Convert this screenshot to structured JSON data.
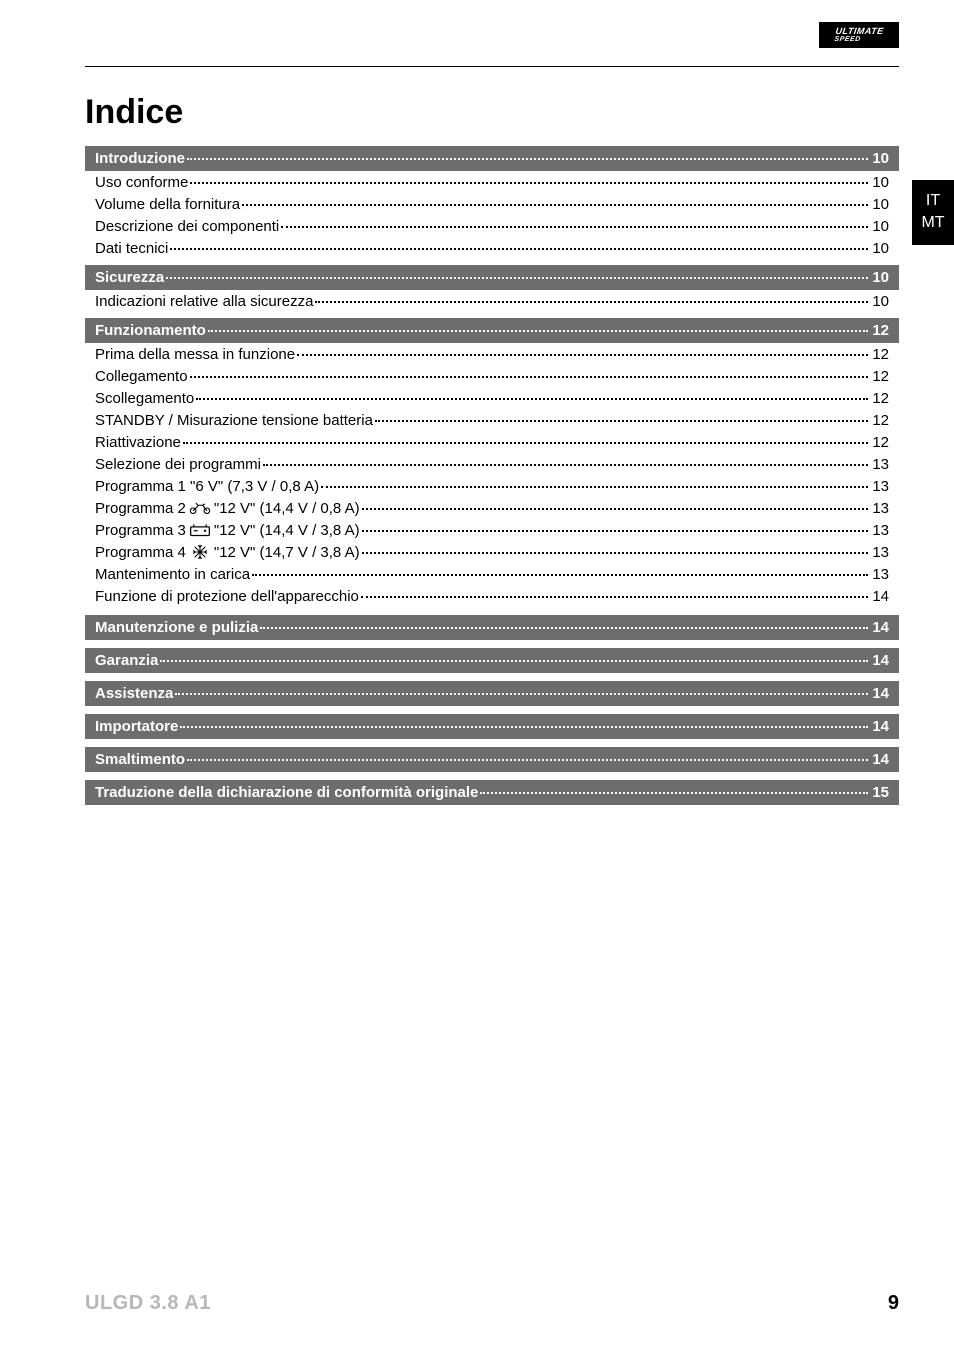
{
  "brand": {
    "top": "ULTIMATE",
    "bottom": "SPEED",
    "bg": "#000000",
    "fg": "#ffffff"
  },
  "rule_color": "#000000",
  "lang_tab": {
    "line1": "IT",
    "line2": "MT",
    "bg": "#000000",
    "fg": "#ffffff"
  },
  "title": "Indice",
  "section_bar": {
    "bg": "#6d6d6d",
    "fg": "#ffffff",
    "font_size": 15,
    "font_weight": 700
  },
  "row_style": {
    "font_size": 15,
    "color": "#000000",
    "leader": "dotted"
  },
  "sections": [
    {
      "label": "Introduzione",
      "page": "10",
      "items": [
        {
          "label": "Uso conforme",
          "page": "10"
        },
        {
          "label": "Volume della fornitura",
          "page": "10"
        },
        {
          "label": "Descrizione dei componenti",
          "page": "10"
        },
        {
          "label": "Dati tecnici",
          "page": "10"
        }
      ]
    },
    {
      "label": "Sicurezza",
      "page": "10",
      "items": [
        {
          "label": "Indicazioni relative alla sicurezza",
          "page": "10"
        }
      ]
    },
    {
      "label": "Funzionamento",
      "page": "12",
      "items": [
        {
          "label": "Prima della messa in funzione",
          "page": "12"
        },
        {
          "label": "Collegamento",
          "page": "12"
        },
        {
          "label": "Scollegamento",
          "page": "12"
        },
        {
          "label": "STANDBY / Misurazione tensione batteria",
          "page": "12"
        },
        {
          "label": "Riattivazione",
          "page": "12"
        },
        {
          "label": "Selezione dei programmi",
          "page": "13"
        },
        {
          "label": "Programma 1 \"6 V\" (7,3 V / 0,8 A)",
          "page": "13"
        },
        {
          "label_pre": "Programma 2 ",
          "icon": "moto",
          "label_post": " \"12 V\" (14,4 V / 0,8 A)",
          "page": "13"
        },
        {
          "label_pre": "Programma 3 ",
          "icon": "car",
          "label_post": " \"12 V\" (14,4 V / 3,8 A)",
          "page": "13"
        },
        {
          "label_pre": "Programma 4 ",
          "icon": "snow",
          "label_post": " \"12 V\" (14,7 V / 3,8 A)",
          "page": "13"
        },
        {
          "label": "Mantenimento in carica",
          "page": "13"
        },
        {
          "label": "Funzione di protezione dell'apparecchio",
          "page": "14"
        }
      ]
    },
    {
      "label": "Manutenzione e pulizia",
      "page": "14",
      "items": []
    },
    {
      "label": "Garanzia",
      "page": "14",
      "items": []
    },
    {
      "label": "Assistenza",
      "page": "14",
      "items": []
    },
    {
      "label": "Importatore",
      "page": "14",
      "items": []
    },
    {
      "label": "Smaltimento",
      "page": "14",
      "items": []
    },
    {
      "label": "Traduzione della dichiarazione di conformità originale",
      "page": "15",
      "items": []
    }
  ],
  "footer": {
    "model": "ULGD 3.8 A1",
    "model_color": "#b7b7b7",
    "page_number": "9",
    "page_number_color": "#000000"
  },
  "icons": {
    "moto": "motorcycle-icon",
    "car": "car-battery-icon",
    "snow": "snowflake-icon"
  }
}
